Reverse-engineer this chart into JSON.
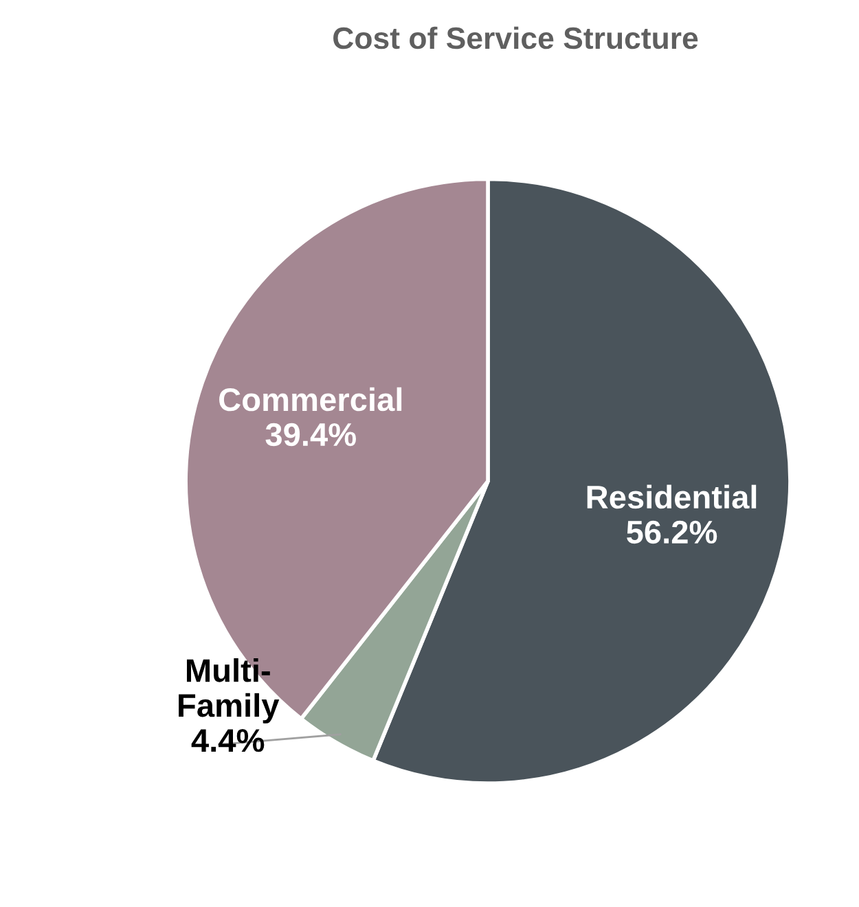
{
  "chart_data": {
    "type": "pie",
    "title": "Cost of Service Structure",
    "categories": [
      "Residential",
      "Multi-\nFamily",
      "Commercial"
    ],
    "values": [
      56.2,
      4.4,
      39.4
    ],
    "value_labels": [
      "56.2%",
      "4.4%",
      "39.4%"
    ],
    "colors": [
      "#4a545b",
      "#93a596",
      "#a48792"
    ],
    "legend": false
  }
}
